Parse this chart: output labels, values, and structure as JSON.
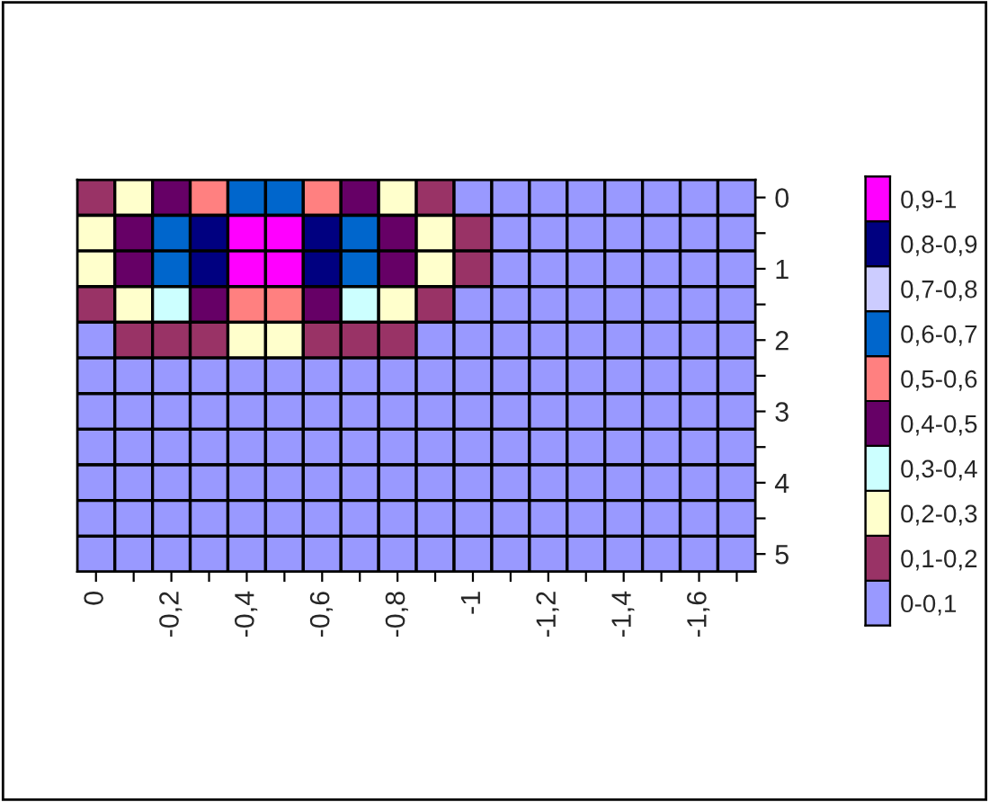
{
  "chart_data": {
    "type": "heatmap",
    "categories": [
      "0",
      null,
      "-0,2",
      null,
      "-0,4",
      null,
      "-0,6",
      null,
      "-0,8",
      null,
      "-1",
      null,
      "-1,2",
      null,
      "-1,4",
      null,
      "-1,6",
      null
    ],
    "y_categories": [
      "0",
      null,
      "1",
      null,
      "2",
      null,
      "3",
      null,
      "4",
      null,
      "5"
    ],
    "cells": [
      [
        0.15,
        0.25,
        0.45,
        0.55,
        0.65,
        0.65,
        0.55,
        0.45,
        0.25,
        0.15,
        0.05,
        0.05,
        0.05,
        0.05,
        0.05,
        0.05,
        0.05,
        0.05
      ],
      [
        0.25,
        0.45,
        0.65,
        0.85,
        0.95,
        0.95,
        0.85,
        0.65,
        0.45,
        0.25,
        0.15,
        0.05,
        0.05,
        0.05,
        0.05,
        0.05,
        0.05,
        0.05
      ],
      [
        0.25,
        0.45,
        0.65,
        0.85,
        0.95,
        0.95,
        0.85,
        0.65,
        0.45,
        0.25,
        0.15,
        0.05,
        0.05,
        0.05,
        0.05,
        0.05,
        0.05,
        0.05
      ],
      [
        0.15,
        0.25,
        0.35,
        0.45,
        0.55,
        0.55,
        0.45,
        0.35,
        0.25,
        0.15,
        0.05,
        0.05,
        0.05,
        0.05,
        0.05,
        0.05,
        0.05,
        0.05
      ],
      [
        0.05,
        0.15,
        0.15,
        0.15,
        0.25,
        0.25,
        0.15,
        0.15,
        0.15,
        0.05,
        0.05,
        0.05,
        0.05,
        0.05,
        0.05,
        0.05,
        0.05,
        0.05
      ],
      [
        0.05,
        0.05,
        0.05,
        0.05,
        0.05,
        0.05,
        0.05,
        0.05,
        0.05,
        0.05,
        0.05,
        0.05,
        0.05,
        0.05,
        0.05,
        0.05,
        0.05,
        0.05
      ],
      [
        0.05,
        0.05,
        0.05,
        0.05,
        0.05,
        0.05,
        0.05,
        0.05,
        0.05,
        0.05,
        0.05,
        0.05,
        0.05,
        0.05,
        0.05,
        0.05,
        0.05,
        0.05
      ],
      [
        0.05,
        0.05,
        0.05,
        0.05,
        0.05,
        0.05,
        0.05,
        0.05,
        0.05,
        0.05,
        0.05,
        0.05,
        0.05,
        0.05,
        0.05,
        0.05,
        0.05,
        0.05
      ],
      [
        0.05,
        0.05,
        0.05,
        0.05,
        0.05,
        0.05,
        0.05,
        0.05,
        0.05,
        0.05,
        0.05,
        0.05,
        0.05,
        0.05,
        0.05,
        0.05,
        0.05,
        0.05
      ],
      [
        0.05,
        0.05,
        0.05,
        0.05,
        0.05,
        0.05,
        0.05,
        0.05,
        0.05,
        0.05,
        0.05,
        0.05,
        0.05,
        0.05,
        0.05,
        0.05,
        0.05,
        0.05
      ],
      [
        0.05,
        0.05,
        0.05,
        0.05,
        0.05,
        0.05,
        0.05,
        0.05,
        0.05,
        0.05,
        0.05,
        0.05,
        0.05,
        0.05,
        0.05,
        0.05,
        0.05,
        0.05
      ]
    ],
    "colors": [
      "#9999ff",
      "#993366",
      "#ffffcc",
      "#ccffff",
      "#660066",
      "#ff8080",
      "#0066cc",
      "#ccccff",
      "#000080",
      "#ff00ff"
    ],
    "clim": [
      0,
      1
    ],
    "cticks": [
      {
        "value": 0.95,
        "label": "0,9-1"
      },
      {
        "value": 0.85,
        "label": "0,8-0,9"
      },
      {
        "value": 0.75,
        "label": "0,7-0,8"
      },
      {
        "value": 0.65,
        "label": "0,6-0,7"
      },
      {
        "value": 0.55,
        "label": "0,5-0,6"
      },
      {
        "value": 0.45,
        "label": "0,4-0,5"
      },
      {
        "value": 0.35,
        "label": "0,3-0,4"
      },
      {
        "value": 0.25,
        "label": "0,2-0,3"
      },
      {
        "value": 0.15,
        "label": "0,1-0,2"
      },
      {
        "value": 0.05,
        "label": "0-0,1"
      }
    ]
  }
}
